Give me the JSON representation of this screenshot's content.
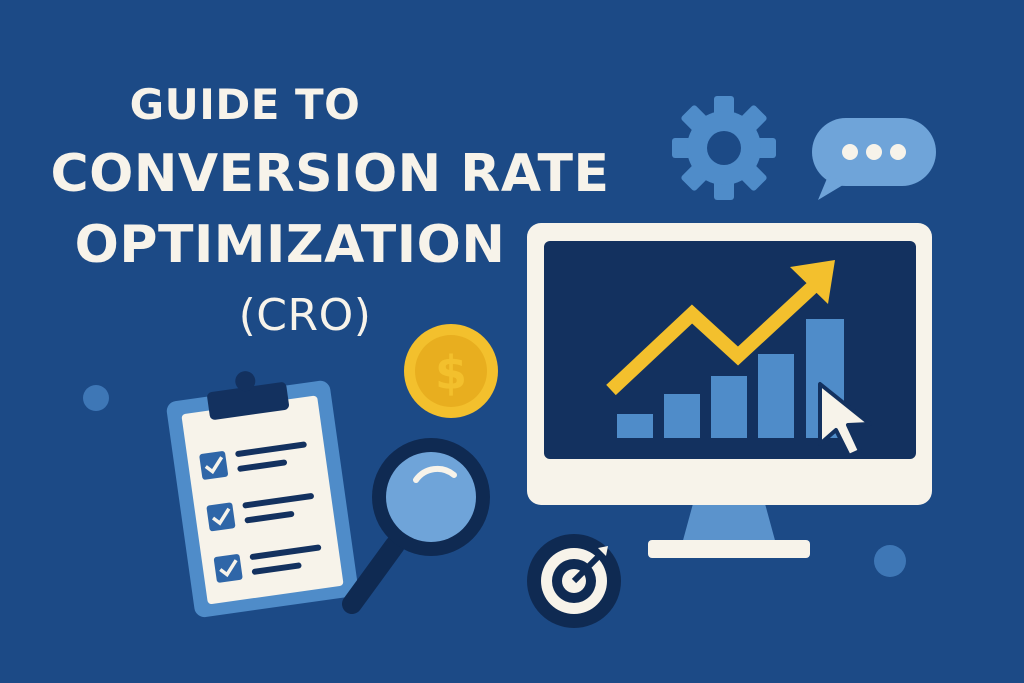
{
  "title": {
    "line1": "GUIDE TO",
    "line2": "CONVERSION RATE",
    "line3": "OPTIMIZATION",
    "line4": "(CRO)"
  },
  "coin": {
    "symbol": "$"
  },
  "colors": {
    "background": "#1c4a86",
    "text": "#f7f3ea",
    "accent_yellow": "#f3c02d",
    "light_blue": "#4f8cc9",
    "navy": "#13315f",
    "cream": "#f7f3ea"
  },
  "icons": [
    "gear-icon",
    "chat-bubble-icon",
    "monitor-icon",
    "growth-chart-icon",
    "cursor-icon",
    "coin-icon",
    "clipboard-checklist-icon",
    "magnifying-glass-icon",
    "target-icon"
  ]
}
